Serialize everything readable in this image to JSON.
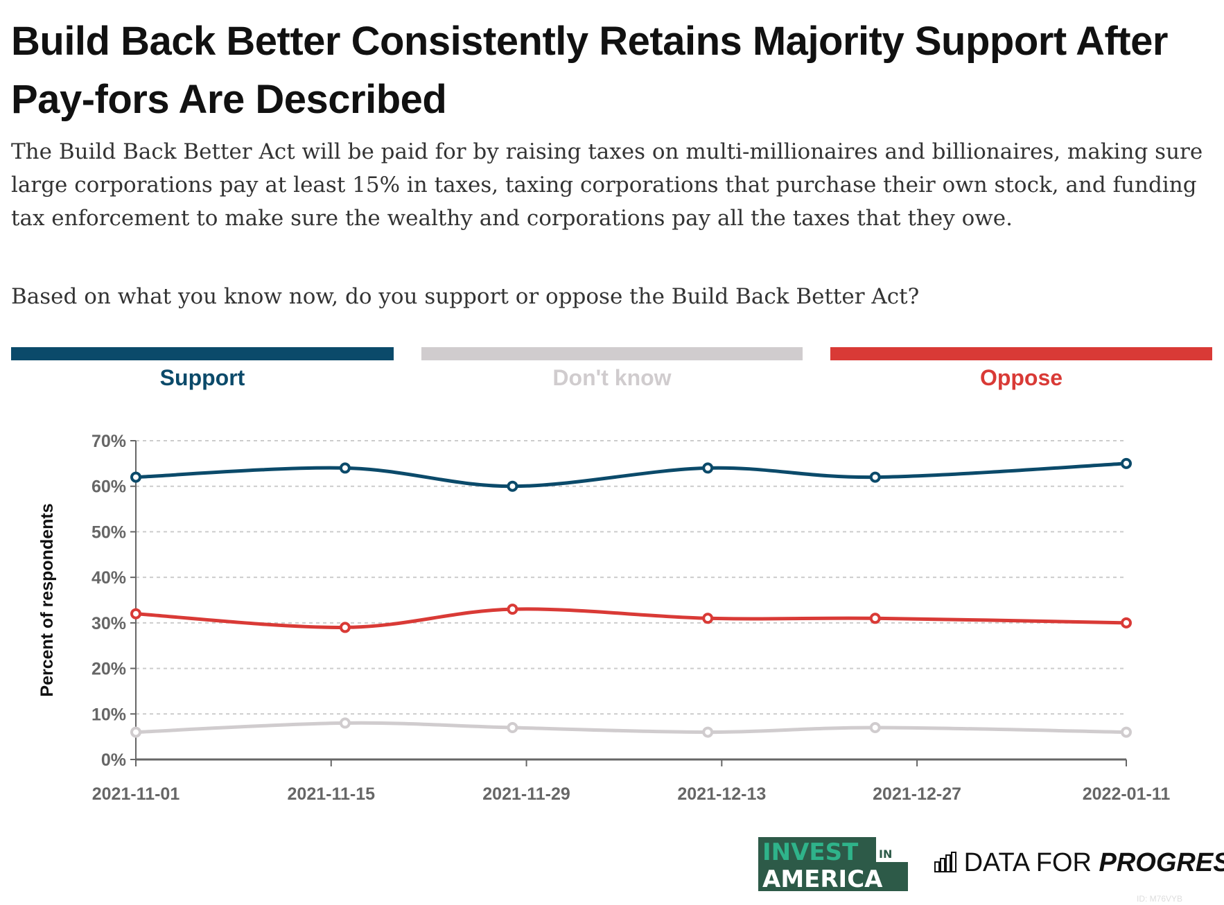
{
  "title": "Build Back Better Consistently Retains Majority Support After Pay-fors Are Described",
  "description": "The Build Back Better Act will be paid for by raising taxes on multi-millionaires and billionaires, making sure large corporations pay at least 15% in taxes, taxing corporations that purchase their own stock, and funding tax enforcement to make sure the wealthy and corporations pay all the taxes that they owe.",
  "question": "Based on what you know now, do you support or oppose the Build Back Better Act?",
  "legend": [
    {
      "label": "Support",
      "color": "#0b4a6a"
    },
    {
      "label": "Don't know",
      "color": "#d0ccce"
    },
    {
      "label": "Oppose",
      "color": "#d93a36"
    }
  ],
  "chart_data": {
    "type": "line",
    "ylabel": "Percent of respondents",
    "xlabel": "",
    "ylim": [
      0,
      70
    ],
    "yticks": [
      "0%",
      "10%",
      "20%",
      "30%",
      "40%",
      "50%",
      "60%",
      "70%"
    ],
    "xticks": [
      "2021-11-01",
      "2021-11-15",
      "2021-11-29",
      "2021-12-13",
      "2021-12-27",
      "2022-01-11"
    ],
    "xlim": [
      "2021-11-01",
      "2022-01-11"
    ],
    "grid": true,
    "legend_position": "top",
    "x": [
      "2021-11-01",
      "2021-11-16",
      "2021-11-28",
      "2021-12-12",
      "2021-12-24",
      "2022-01-11"
    ],
    "series": [
      {
        "name": "Support",
        "color": "#0b4a6a",
        "values": [
          62,
          64,
          60,
          64,
          62,
          65
        ]
      },
      {
        "name": "Oppose",
        "color": "#d93a36",
        "values": [
          32,
          29,
          33,
          31,
          31,
          30
        ]
      },
      {
        "name": "Don't know",
        "color": "#d0ccce",
        "values": [
          6,
          8,
          7,
          6,
          7,
          6
        ]
      }
    ]
  },
  "footer": {
    "logo1": "INVEST IN AMERICA",
    "logo2_light": "DATA FOR",
    "logo2_bold": "PROGRESS",
    "id": "ID: M76VYB"
  }
}
